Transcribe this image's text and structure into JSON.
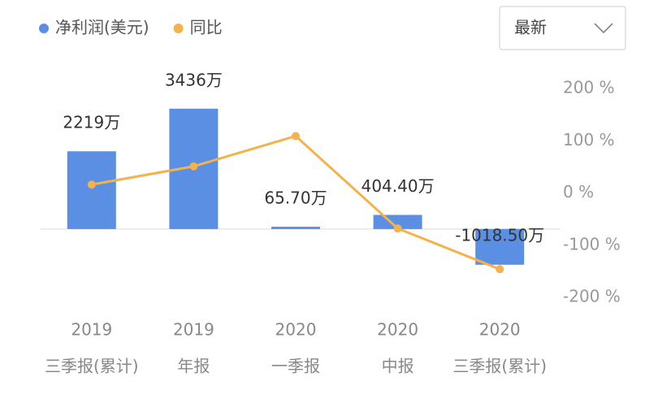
{
  "chart_data": {
    "type": "bar-line",
    "categories": [
      [
        "2019",
        "三季报(累计)"
      ],
      [
        "2019",
        "年报"
      ],
      [
        "2020",
        "一季报"
      ],
      [
        "2020",
        "中报"
      ],
      [
        "2020",
        "三季报(累计)"
      ]
    ],
    "series": [
      {
        "name": "净利润(美元)",
        "color": "#5b8fe4",
        "values": [
          2219,
          3436,
          65.7,
          404.4,
          -1018.5
        ],
        "value_labels": [
          "2219万",
          "3436万",
          "65.70万",
          "404.40万",
          "-1018.50万"
        ]
      },
      {
        "name": "同比",
        "color": "#f2b24e",
        "axis": "y2",
        "values": [
          16,
          51,
          109,
          -68,
          -146
        ]
      }
    ],
    "ylim": [
      -1950,
      4010
    ],
    "y2lim": [
      -200,
      200
    ],
    "y2ticks": [
      {
        "value": 200,
        "label": "200 %"
      },
      {
        "value": 100,
        "label": "100 %"
      },
      {
        "value": 0,
        "label": "0 %"
      },
      {
        "value": -100,
        "label": "-100 %"
      },
      {
        "value": -200,
        "label": "-200 %"
      }
    ]
  },
  "controls": {
    "sort_select": "最新"
  }
}
